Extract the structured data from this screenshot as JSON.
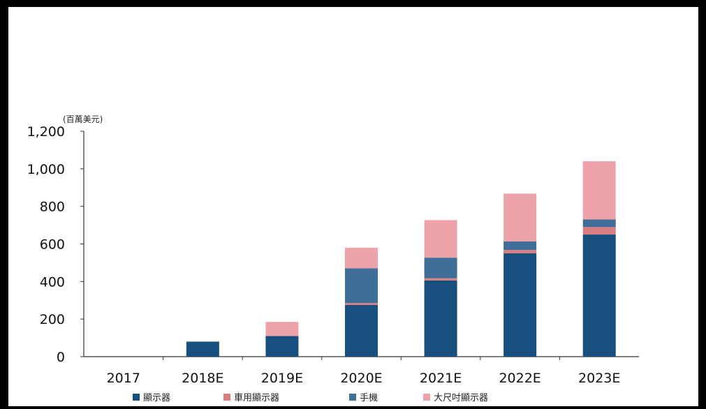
{
  "chart_data": {
    "type": "bar",
    "stacked": true,
    "unit_label": "(百萬美元)",
    "categories": [
      "2017",
      "2018E",
      "2019E",
      "2020E",
      "2021E",
      "2022E",
      "2023E"
    ],
    "series": [
      {
        "name": "顯示器",
        "color": "#17507f",
        "values": [
          0,
          80,
          110,
          275,
          405,
          550,
          650
        ]
      },
      {
        "name": "車用顯示器",
        "color": "#d97f82",
        "values": [
          0,
          0,
          0,
          10,
          12,
          18,
          40
        ]
      },
      {
        "name": "手機",
        "color": "#3f6f99",
        "values": [
          0,
          0,
          0,
          185,
          110,
          45,
          40
        ]
      },
      {
        "name": "大尺吋顯示器",
        "color": "#eea3aa",
        "values": [
          0,
          0,
          75,
          110,
          200,
          255,
          310
        ]
      }
    ],
    "yticks": [
      "0",
      "200",
      "400",
      "600",
      "800",
      "1,000",
      "1,200"
    ],
    "ylim": [
      0,
      1200
    ],
    "grid": false,
    "legend_position": "bottom"
  }
}
